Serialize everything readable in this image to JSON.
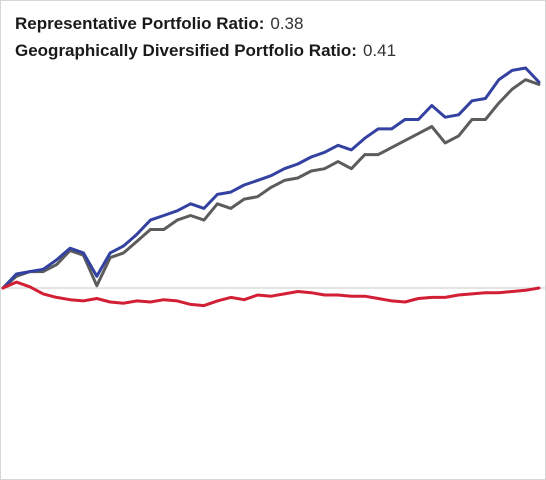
{
  "stats": {
    "rep_label": "Representative Portfolio Ratio:",
    "rep_value": "0.38",
    "geo_label": "Geographically Diversified Portfolio Ratio:",
    "geo_value": "0.41"
  },
  "chart_data": {
    "type": "line",
    "title": "",
    "xlabel": "",
    "ylabel": "",
    "grid": false,
    "legend": "none",
    "baseline": 0,
    "ylim": [
      -1,
      10
    ],
    "x": [
      0,
      5,
      10,
      15,
      20,
      25,
      30,
      35,
      40,
      45,
      50,
      55,
      60,
      65,
      70,
      75,
      80,
      85,
      90,
      95,
      100,
      105,
      110,
      115,
      120,
      125,
      130,
      135,
      140,
      145,
      150,
      155,
      160,
      165,
      170,
      175,
      180,
      185,
      190,
      195,
      200
    ],
    "series": [
      {
        "color": "#3341a1",
        "values": [
          0.0,
          0.6,
          0.7,
          0.8,
          1.2,
          1.7,
          1.5,
          0.5,
          1.5,
          1.8,
          2.3,
          2.9,
          3.1,
          3.3,
          3.6,
          3.4,
          4.0,
          4.1,
          4.4,
          4.6,
          4.8,
          5.1,
          5.3,
          5.6,
          5.8,
          6.1,
          5.9,
          6.4,
          6.8,
          6.8,
          7.2,
          7.2,
          7.8,
          7.3,
          7.4,
          8.0,
          8.1,
          8.9,
          9.3,
          9.4,
          8.8
        ]
      },
      {
        "color": "#5c5c5c",
        "values": [
          0.0,
          0.5,
          0.7,
          0.7,
          1.0,
          1.6,
          1.4,
          0.1,
          1.3,
          1.5,
          2.0,
          2.5,
          2.5,
          2.9,
          3.1,
          2.9,
          3.6,
          3.4,
          3.8,
          3.9,
          4.3,
          4.6,
          4.7,
          5.0,
          5.1,
          5.4,
          5.1,
          5.7,
          5.7,
          6.0,
          6.3,
          6.6,
          6.9,
          6.2,
          6.5,
          7.2,
          7.2,
          7.9,
          8.5,
          8.9,
          8.7
        ]
      },
      {
        "color": "#d31f35",
        "values": [
          0.0,
          0.25,
          0.05,
          -0.25,
          -0.4,
          -0.5,
          -0.55,
          -0.45,
          -0.6,
          -0.65,
          -0.55,
          -0.6,
          -0.5,
          -0.55,
          -0.7,
          -0.75,
          -0.55,
          -0.4,
          -0.5,
          -0.3,
          -0.35,
          -0.25,
          -0.15,
          -0.2,
          -0.3,
          -0.3,
          -0.35,
          -0.35,
          -0.45,
          -0.55,
          -0.6,
          -0.45,
          -0.4,
          -0.4,
          -0.3,
          -0.25,
          -0.2,
          -0.2,
          -0.15,
          -0.1,
          0.0
        ]
      }
    ]
  }
}
